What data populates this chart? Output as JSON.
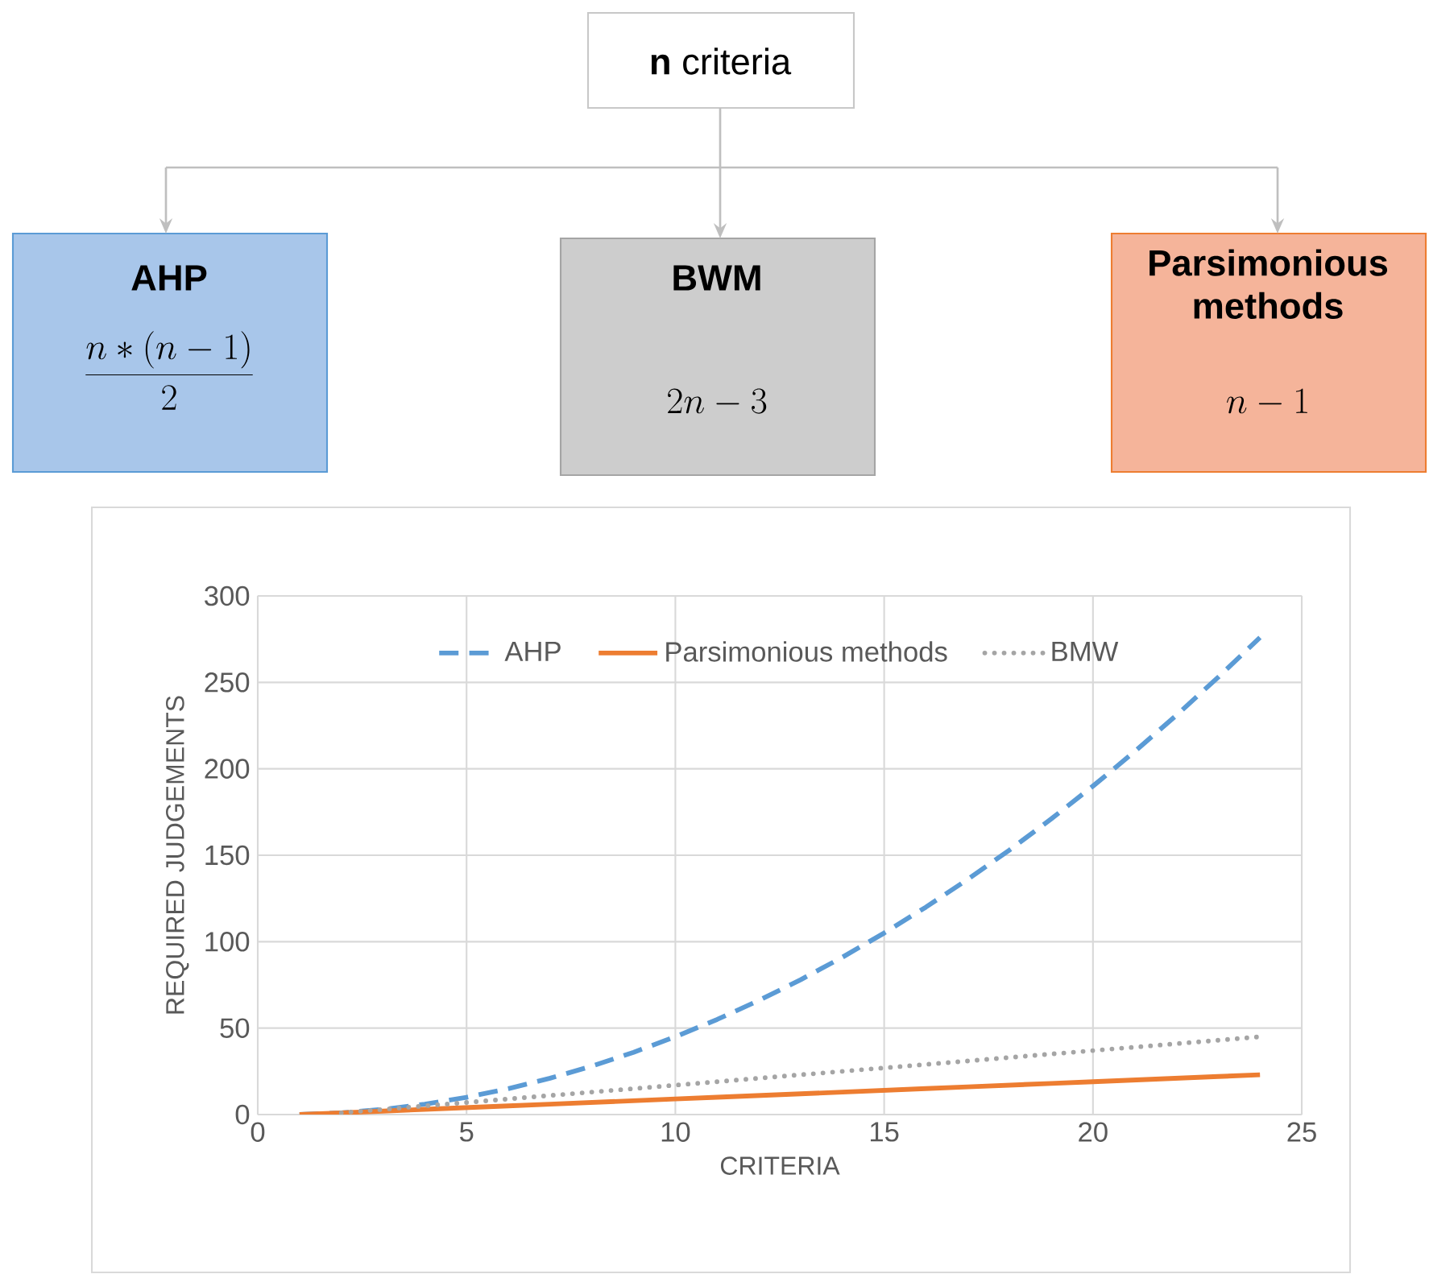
{
  "chart_data": {
    "type": "line",
    "xlabel": "CRITERIA",
    "ylabel": "REQUIRED JUDGEMENTS",
    "series": [
      {
        "name": "AHP",
        "color": "#5b9bd5",
        "line_style": "dashed",
        "x": [
          1,
          2,
          3,
          4,
          5,
          6,
          7,
          8,
          9,
          10,
          11,
          12,
          13,
          14,
          15,
          16,
          17,
          18,
          19,
          20,
          21,
          22,
          23,
          24
        ],
        "values": [
          0,
          1,
          3,
          6,
          10,
          15,
          21,
          28,
          36,
          45,
          55,
          66,
          78,
          91,
          105,
          120,
          136,
          153,
          171,
          190,
          210,
          231,
          253,
          276
        ]
      },
      {
        "name": "Parsimonious methods",
        "color": "#ed7d31",
        "line_style": "solid",
        "x": [
          1,
          2,
          3,
          4,
          5,
          6,
          7,
          8,
          9,
          10,
          11,
          12,
          13,
          14,
          15,
          16,
          17,
          18,
          19,
          20,
          21,
          22,
          23,
          24
        ],
        "values": [
          0,
          1,
          2,
          3,
          4,
          5,
          6,
          7,
          8,
          9,
          10,
          11,
          12,
          13,
          14,
          15,
          16,
          17,
          18,
          19,
          20,
          21,
          22,
          23
        ]
      },
      {
        "name": "BMW",
        "color": "#a5a5a5",
        "line_style": "dotted",
        "x": [
          2,
          3,
          4,
          5,
          6,
          7,
          8,
          9,
          10,
          11,
          12,
          13,
          14,
          15,
          16,
          17,
          18,
          19,
          20,
          21,
          22,
          23,
          24
        ],
        "values": [
          1,
          3,
          5,
          7,
          9,
          11,
          13,
          15,
          17,
          19,
          21,
          23,
          25,
          27,
          29,
          31,
          33,
          35,
          37,
          39,
          41,
          43,
          45
        ]
      }
    ],
    "xlim": [
      0,
      25
    ],
    "xticks": [
      0,
      5,
      10,
      15,
      20,
      25
    ],
    "ylim": [
      0,
      300
    ],
    "yticks": [
      0,
      50,
      100,
      150,
      200,
      250,
      300
    ],
    "grid": true,
    "legend": "top",
    "marker": "none",
    "annotations": [
      "**n** criteria",
      "AHP",
      "\\frac{n \\ast (n-1)}{2}",
      "BWM",
      "2n-3",
      "Parsimonious methods",
      "n-1"
    ]
  }
}
